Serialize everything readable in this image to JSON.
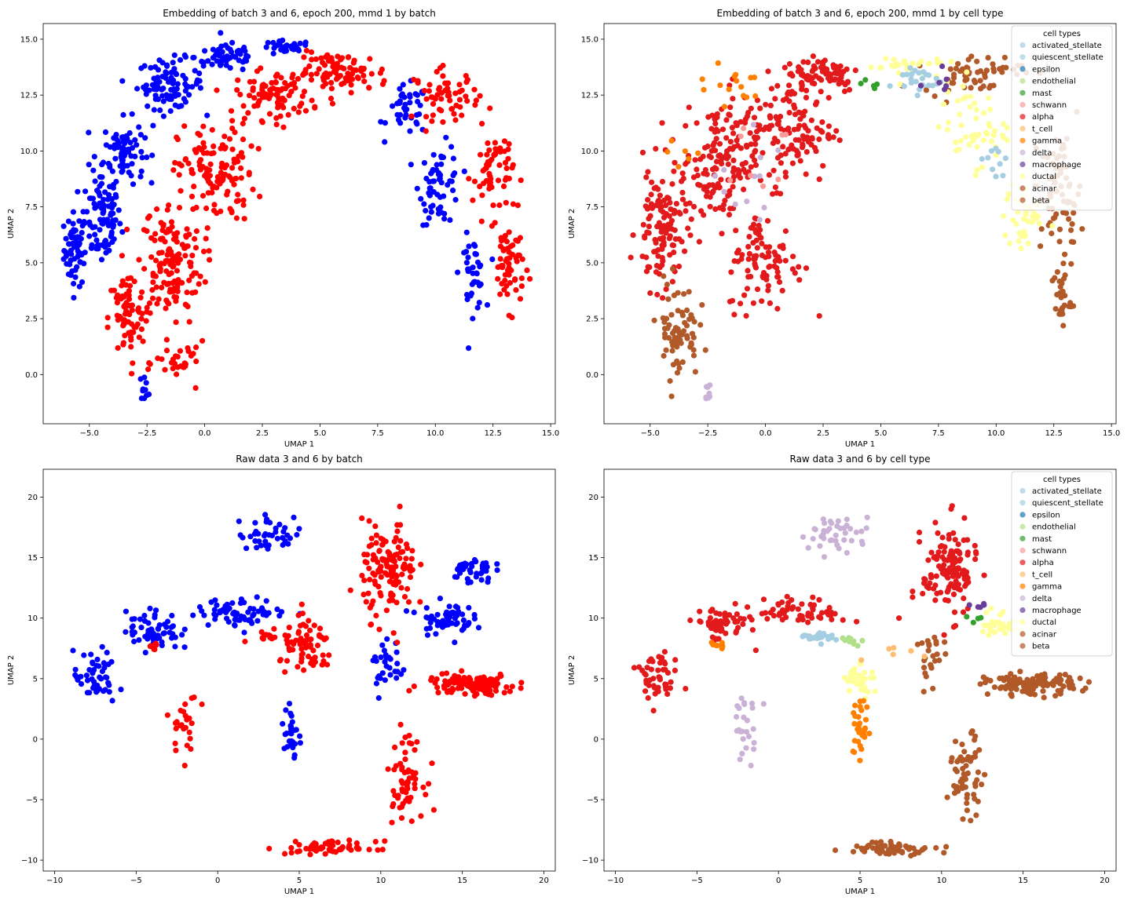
{
  "figure": {
    "background": "#ffffff"
  },
  "palette": {
    "batch_blue": "#0000ff",
    "batch_red": "#ff0000",
    "activated_stellate": "#a6cee3",
    "quiescent_stellate": "#a6cee3",
    "epsilon": "#1f78b4",
    "endothelial": "#b2df8a",
    "mast": "#33a02c",
    "schwann": "#fb9a99",
    "alpha": "#e31a1c",
    "t_cell": "#fdbf6f",
    "gamma": "#ff7f00",
    "delta": "#cab2d6",
    "macrophage": "#6a3d9a",
    "ductal": "#ffff99",
    "acinar": "#b15928",
    "beta": "#b15928"
  },
  "chart_data": [
    {
      "id": "emb_batch",
      "type": "scatter",
      "title": "Embedding of batch 3 and 6, epoch 200, mmd 1 by batch",
      "xlabel": "UMAP 1",
      "ylabel": "UMAP 2",
      "xlim": [
        -7.0,
        15.2
      ],
      "ylim": [
        -2.2,
        15.7
      ],
      "xticks": [
        -5.0,
        -2.5,
        0.0,
        2.5,
        5.0,
        7.5,
        10.0,
        12.5,
        15.0
      ],
      "xtick_labels": [
        "−5.0",
        "−2.5",
        "0.0",
        "2.5",
        "5.0",
        "7.5",
        "10.0",
        "12.5",
        "15.0"
      ],
      "yticks": [
        0.0,
        2.5,
        5.0,
        7.5,
        10.0,
        12.5,
        15.0
      ],
      "ytick_labels": [
        "0.0",
        "2.5",
        "5.0",
        "7.5",
        "10.0",
        "12.5",
        "15.0"
      ],
      "grid": false,
      "legend": null,
      "series": [
        {
          "color_key": "batch_blue",
          "regions": [
            {
              "x": -5.6,
              "y": 5.6,
              "sx": 0.45,
              "sy": 1.5,
              "n": 60
            },
            {
              "x": -4.5,
              "y": 7.0,
              "sx": 0.8,
              "sy": 2.0,
              "n": 90
            },
            {
              "x": -3.5,
              "y": 10.0,
              "sx": 0.8,
              "sy": 1.3,
              "n": 80
            },
            {
              "x": -1.5,
              "y": 13.0,
              "sx": 1.3,
              "sy": 1.0,
              "n": 90
            },
            {
              "x": 1.0,
              "y": 14.2,
              "sx": 1.3,
              "sy": 0.6,
              "n": 60
            },
            {
              "x": 3.5,
              "y": 14.6,
              "sx": 1.0,
              "sy": 0.3,
              "n": 30
            },
            {
              "x": 8.8,
              "y": 11.8,
              "sx": 0.8,
              "sy": 1.0,
              "n": 40
            },
            {
              "x": 10.2,
              "y": 8.5,
              "sx": 0.8,
              "sy": 1.6,
              "n": 60
            },
            {
              "x": 11.6,
              "y": 4.5,
              "sx": 0.5,
              "sy": 1.5,
              "n": 40
            },
            {
              "x": -2.6,
              "y": -0.6,
              "sx": 0.2,
              "sy": 0.5,
              "n": 10
            }
          ]
        },
        {
          "color_key": "batch_red",
          "regions": [
            {
              "x": -3.4,
              "y": 2.5,
              "sx": 0.7,
              "sy": 2.0,
              "n": 70
            },
            {
              "x": -1.5,
              "y": 5.0,
              "sx": 1.3,
              "sy": 2.5,
              "n": 150
            },
            {
              "x": 0.5,
              "y": 9.0,
              "sx": 1.5,
              "sy": 2.0,
              "n": 120
            },
            {
              "x": 3.0,
              "y": 12.5,
              "sx": 1.5,
              "sy": 1.0,
              "n": 90
            },
            {
              "x": 6.0,
              "y": 13.5,
              "sx": 1.8,
              "sy": 0.8,
              "n": 90
            },
            {
              "x": 10.5,
              "y": 12.5,
              "sx": 1.3,
              "sy": 1.0,
              "n": 60
            },
            {
              "x": 12.5,
              "y": 9.0,
              "sx": 0.8,
              "sy": 1.8,
              "n": 60
            },
            {
              "x": 13.2,
              "y": 5.0,
              "sx": 0.6,
              "sy": 1.8,
              "n": 60
            },
            {
              "x": -1.0,
              "y": 0.5,
              "sx": 1.0,
              "sy": 0.8,
              "n": 30
            }
          ]
        }
      ]
    },
    {
      "id": "emb_celltype",
      "type": "scatter",
      "title": "Embedding of batch 3 and 6, epoch 200, mmd 1 by cell type",
      "xlabel": "UMAP 1",
      "ylabel": "UMAP 2",
      "xlim": [
        -7.0,
        15.2
      ],
      "ylim": [
        -2.2,
        15.7
      ],
      "xticks": [
        -5.0,
        -2.5,
        0.0,
        2.5,
        5.0,
        7.5,
        10.0,
        12.5,
        15.0
      ],
      "xtick_labels": [
        "−5.0",
        "−2.5",
        "0.0",
        "2.5",
        "5.0",
        "7.5",
        "10.0",
        "12.5",
        "15.0"
      ],
      "yticks": [
        0.0,
        2.5,
        5.0,
        7.5,
        10.0,
        12.5,
        15.0
      ],
      "ytick_labels": [
        "0.0",
        "2.5",
        "5.0",
        "7.5",
        "10.0",
        "12.5",
        "15.0"
      ],
      "grid": false,
      "legend": {
        "title": "cell types",
        "placement": "top-right",
        "entries": [
          "activated_stellate",
          "quiescent_stellate",
          "epsilon",
          "endothelial",
          "mast",
          "schwann",
          "alpha",
          "t_cell",
          "gamma",
          "delta",
          "macrophage",
          "ductal",
          "acinar",
          "beta"
        ]
      },
      "series": [
        {
          "color_key": "alpha",
          "regions": [
            {
              "x": -4.5,
              "y": 6.5,
              "sx": 1.0,
              "sy": 2.5,
              "n": 120
            },
            {
              "x": -2.0,
              "y": 9.5,
              "sx": 1.5,
              "sy": 2.5,
              "n": 150
            },
            {
              "x": 1.0,
              "y": 11.0,
              "sx": 1.8,
              "sy": 2.2,
              "n": 130
            },
            {
              "x": 2.5,
              "y": 13.5,
              "sx": 1.5,
              "sy": 0.8,
              "n": 70
            },
            {
              "x": 0.0,
              "y": 5.0,
              "sx": 1.5,
              "sy": 2.0,
              "n": 90
            }
          ]
        },
        {
          "color_key": "beta",
          "regions": [
            {
              "x": -3.8,
              "y": 2.0,
              "sx": 0.8,
              "sy": 2.0,
              "n": 70
            },
            {
              "x": 9.0,
              "y": 13.5,
              "sx": 2.0,
              "sy": 0.8,
              "n": 60
            },
            {
              "x": 12.8,
              "y": 8.0,
              "sx": 0.8,
              "sy": 2.5,
              "n": 70
            },
            {
              "x": 12.8,
              "y": 3.5,
              "sx": 0.4,
              "sy": 1.3,
              "n": 30
            }
          ]
        },
        {
          "color_key": "ductal",
          "regions": [
            {
              "x": 9.0,
              "y": 11.0,
              "sx": 1.3,
              "sy": 1.5,
              "n": 50
            },
            {
              "x": 11.2,
              "y": 7.0,
              "sx": 0.8,
              "sy": 1.5,
              "n": 40
            },
            {
              "x": 6.0,
              "y": 13.8,
              "sx": 1.5,
              "sy": 0.5,
              "n": 30
            }
          ]
        },
        {
          "color_key": "activated_stellate",
          "regions": [
            {
              "x": 6.5,
              "y": 13.2,
              "sx": 1.0,
              "sy": 0.6,
              "n": 25
            },
            {
              "x": 10.0,
              "y": 9.5,
              "sx": 0.8,
              "sy": 1.0,
              "n": 10
            }
          ]
        },
        {
          "color_key": "gamma",
          "regions": [
            {
              "x": -1.5,
              "y": 13.0,
              "sx": 1.5,
              "sy": 0.8,
              "n": 15
            },
            {
              "x": -3.5,
              "y": 10.0,
              "sx": 0.6,
              "sy": 0.6,
              "n": 6
            }
          ]
        },
        {
          "color_key": "delta",
          "regions": [
            {
              "x": -2.5,
              "y": -0.8,
              "sx": 0.2,
              "sy": 0.5,
              "n": 8
            },
            {
              "x": -1.0,
              "y": 8.0,
              "sx": 2.0,
              "sy": 3.0,
              "n": 12
            }
          ]
        },
        {
          "color_key": "macrophage",
          "regions": [
            {
              "x": 7.5,
              "y": 13.0,
              "sx": 0.8,
              "sy": 0.4,
              "n": 6
            }
          ]
        },
        {
          "color_key": "mast",
          "regions": [
            {
              "x": 4.5,
              "y": 13.2,
              "sx": 0.6,
              "sy": 0.4,
              "n": 5
            }
          ]
        },
        {
          "color_key": "schwann",
          "regions": [
            {
              "x": -1.0,
              "y": 10.0,
              "sx": 2.0,
              "sy": 2.5,
              "n": 8
            }
          ]
        }
      ]
    },
    {
      "id": "raw_batch",
      "type": "scatter",
      "title": "Raw data 3 and 6 by batch",
      "xlabel": "UMAP 1",
      "ylabel": "UMAP 2",
      "xlim": [
        -10.7,
        20.7
      ],
      "ylim": [
        -10.9,
        22.3
      ],
      "xticks": [
        -10,
        -5,
        0,
        5,
        10,
        15,
        20
      ],
      "xtick_labels": [
        "−10",
        "−5",
        "0",
        "5",
        "10",
        "15",
        "20"
      ],
      "yticks": [
        -10,
        -5,
        0,
        5,
        10,
        15,
        20
      ],
      "ytick_labels": [
        "−10",
        "−5",
        "0",
        "5",
        "10",
        "15",
        "20"
      ],
      "grid": false,
      "legend": null,
      "series": [
        {
          "color_key": "batch_blue",
          "regions": [
            {
              "x": -7.5,
              "y": 5.0,
              "sx": 1.2,
              "sy": 2.0,
              "n": 50
            },
            {
              "x": -4.0,
              "y": 9.0,
              "sx": 1.5,
              "sy": 1.5,
              "n": 60
            },
            {
              "x": 1.5,
              "y": 10.5,
              "sx": 2.5,
              "sy": 1.0,
              "n": 70
            },
            {
              "x": 3.5,
              "y": 17.0,
              "sx": 2.0,
              "sy": 1.3,
              "n": 40
            },
            {
              "x": 14.0,
              "y": 10.0,
              "sx": 1.5,
              "sy": 1.2,
              "n": 60
            },
            {
              "x": 15.5,
              "y": 14.0,
              "sx": 1.2,
              "sy": 1.0,
              "n": 40
            },
            {
              "x": 4.5,
              "y": 0.5,
              "sx": 0.4,
              "sy": 2.5,
              "n": 30
            },
            {
              "x": 10.5,
              "y": 6.0,
              "sx": 1.0,
              "sy": 2.0,
              "n": 30
            }
          ]
        },
        {
          "color_key": "batch_red",
          "regions": [
            {
              "x": 10.5,
              "y": 14.0,
              "sx": 1.5,
              "sy": 3.5,
              "n": 130
            },
            {
              "x": 5.5,
              "y": 7.5,
              "sx": 1.5,
              "sy": 2.0,
              "n": 70
            },
            {
              "x": 15.5,
              "y": 4.5,
              "sx": 2.5,
              "sy": 0.8,
              "n": 120
            },
            {
              "x": 11.5,
              "y": -3.0,
              "sx": 1.0,
              "sy": 3.0,
              "n": 60
            },
            {
              "x": 7.0,
              "y": -9.0,
              "sx": 2.5,
              "sy": 0.5,
              "n": 60
            },
            {
              "x": -2.0,
              "y": 1.0,
              "sx": 0.8,
              "sy": 2.5,
              "n": 25
            },
            {
              "x": -4.0,
              "y": 7.8,
              "sx": 0.5,
              "sy": 0.3,
              "n": 8
            },
            {
              "x": 3.0,
              "y": 8.5,
              "sx": 1.0,
              "sy": 0.4,
              "n": 12
            }
          ]
        }
      ]
    },
    {
      "id": "raw_celltype",
      "type": "scatter",
      "title": "Raw data 3 and 6 by cell type",
      "xlabel": "UMAP 1",
      "ylabel": "UMAP 2",
      "xlim": [
        -10.7,
        20.7
      ],
      "ylim": [
        -10.9,
        22.3
      ],
      "xticks": [
        -10,
        -5,
        0,
        5,
        10,
        15,
        20
      ],
      "xtick_labels": [
        "−10",
        "−5",
        "0",
        "5",
        "10",
        "15",
        "20"
      ],
      "yticks": [
        -10,
        -5,
        0,
        5,
        10,
        15,
        20
      ],
      "ytick_labels": [
        "−10",
        "−5",
        "0",
        "5",
        "10",
        "15",
        "20"
      ],
      "grid": false,
      "legend": {
        "title": "cell types",
        "placement": "top-right",
        "entries": [
          "activated_stellate",
          "quiescent_stellate",
          "epsilon",
          "endothelial",
          "mast",
          "schwann",
          "alpha",
          "t_cell",
          "gamma",
          "delta",
          "macrophage",
          "ductal",
          "acinar",
          "beta"
        ]
      },
      "series": [
        {
          "color_key": "alpha",
          "regions": [
            {
              "x": -7.5,
              "y": 5.0,
              "sx": 1.2,
              "sy": 2.0,
              "n": 50
            },
            {
              "x": -3.5,
              "y": 9.5,
              "sx": 1.5,
              "sy": 1.3,
              "n": 60
            },
            {
              "x": 1.5,
              "y": 10.5,
              "sx": 2.5,
              "sy": 1.0,
              "n": 60
            },
            {
              "x": 10.5,
              "y": 14.0,
              "sx": 1.5,
              "sy": 3.5,
              "n": 130
            }
          ]
        },
        {
          "color_key": "acinar",
          "regions": [
            {
              "x": 15.5,
              "y": 4.5,
              "sx": 2.5,
              "sy": 0.8,
              "n": 120
            },
            {
              "x": 11.5,
              "y": -3.0,
              "sx": 1.0,
              "sy": 3.0,
              "n": 60
            },
            {
              "x": 7.0,
              "y": -9.0,
              "sx": 2.5,
              "sy": 0.5,
              "n": 60
            },
            {
              "x": 9.5,
              "y": 6.5,
              "sx": 0.8,
              "sy": 2.0,
              "n": 25
            }
          ]
        },
        {
          "color_key": "delta",
          "regions": [
            {
              "x": 3.5,
              "y": 17.0,
              "sx": 2.0,
              "sy": 1.3,
              "n": 40
            },
            {
              "x": -2.0,
              "y": 1.0,
              "sx": 0.8,
              "sy": 2.5,
              "n": 25
            }
          ]
        },
        {
          "color_key": "ductal",
          "regions": [
            {
              "x": 5.0,
              "y": 5.0,
              "sx": 0.8,
              "sy": 1.2,
              "n": 40
            },
            {
              "x": 13.5,
              "y": 9.5,
              "sx": 1.0,
              "sy": 1.0,
              "n": 30
            }
          ]
        },
        {
          "color_key": "activated_stellate",
          "regions": [
            {
              "x": 2.5,
              "y": 8.5,
              "sx": 1.0,
              "sy": 0.4,
              "n": 25
            }
          ]
        },
        {
          "color_key": "endothelial",
          "regions": [
            {
              "x": 4.5,
              "y": 8.2,
              "sx": 0.6,
              "sy": 0.4,
              "n": 10
            }
          ]
        },
        {
          "color_key": "gamma",
          "regions": [
            {
              "x": 5.0,
              "y": 0.5,
              "sx": 0.5,
              "sy": 2.5,
              "n": 30
            },
            {
              "x": -3.8,
              "y": 7.8,
              "sx": 0.5,
              "sy": 0.3,
              "n": 8
            }
          ]
        },
        {
          "color_key": "macrophage",
          "regions": [
            {
              "x": 12.5,
              "y": 11.0,
              "sx": 0.6,
              "sy": 0.5,
              "n": 5
            }
          ]
        },
        {
          "color_key": "mast",
          "regions": [
            {
              "x": 12.0,
              "y": 10.0,
              "sx": 0.8,
              "sy": 0.4,
              "n": 4
            }
          ]
        },
        {
          "color_key": "t_cell",
          "regions": [
            {
              "x": 7.0,
              "y": 7.0,
              "sx": 1.5,
              "sy": 1.0,
              "n": 6
            }
          ]
        }
      ]
    }
  ]
}
